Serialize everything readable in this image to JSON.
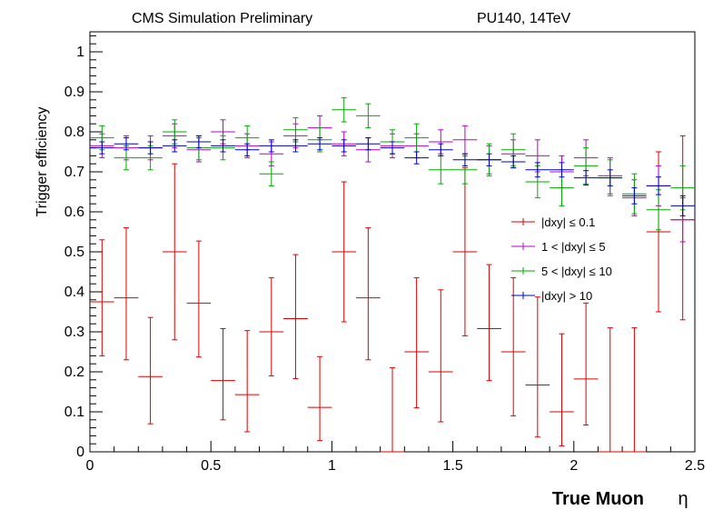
{
  "chart_data": {
    "type": "scatter",
    "style": "error-bars",
    "header_left": "CMS Simulation Preliminary",
    "header_right": "PU140, 14TeV",
    "xlabel": "True Muon",
    "xlabel_symbol": "η",
    "ylabel": "Trigger efficiency",
    "xlim": [
      0,
      2.5
    ],
    "ylim": [
      0,
      1.05
    ],
    "x_ticks": [
      0,
      0.5,
      1,
      1.5,
      2,
      2.5
    ],
    "x_tick_labels": [
      "0",
      "0.5",
      "1",
      "1.5",
      "2",
      "2.5"
    ],
    "y_ticks": [
      0,
      0.1,
      0.2,
      0.3,
      0.4,
      0.5,
      0.6,
      0.7,
      0.8,
      0.9,
      1
    ],
    "y_tick_labels": [
      "0",
      "0.1",
      "0.2",
      "0.3",
      "0.4",
      "0.5",
      "0.6",
      "0.7",
      "0.8",
      "0.9",
      "1"
    ],
    "grid": false,
    "legend_position": "center-right",
    "x": [
      0.05,
      0.15,
      0.25,
      0.35,
      0.45,
      0.55,
      0.65,
      0.75,
      0.85,
      0.95,
      1.05,
      1.15,
      1.25,
      1.35,
      1.45,
      1.55,
      1.65,
      1.75,
      1.85,
      1.95,
      2.05,
      2.15,
      2.25,
      2.35,
      2.45
    ],
    "bin_half_width": 0.05,
    "series": [
      {
        "name": "|dxy| ≤ 0.1",
        "color": "#dd0000",
        "values": [
          0.375,
          0.385,
          0.188,
          0.5,
          0.372,
          0.178,
          0.143,
          0.3,
          0.333,
          0.111,
          0.5,
          0.385,
          0.0,
          0.25,
          0.2,
          0.5,
          0.308,
          0.25,
          0.167,
          0.1,
          0.182,
          0.0,
          0.0,
          0.55,
          0.58
        ],
        "err_low": [
          0.135,
          0.155,
          0.118,
          0.22,
          0.135,
          0.098,
          0.093,
          0.11,
          0.15,
          0.083,
          0.175,
          0.155,
          0.0,
          0.14,
          0.125,
          0.21,
          0.13,
          0.16,
          0.13,
          0.085,
          0.115,
          0.0,
          0.0,
          0.2,
          0.25
        ],
        "err_high": [
          0.155,
          0.175,
          0.148,
          0.22,
          0.155,
          0.13,
          0.16,
          0.135,
          0.16,
          0.127,
          0.175,
          0.175,
          0.21,
          0.185,
          0.205,
          0.21,
          0.16,
          0.185,
          0.22,
          0.195,
          0.19,
          0.31,
          0.31,
          0.2,
          0.21
        ]
      },
      {
        "name": "1 < |dxy| ≤ 5",
        "color": "#bb00cc",
        "values": [
          0.765,
          0.76,
          0.76,
          0.79,
          0.755,
          0.8,
          0.765,
          0.745,
          0.79,
          0.81,
          0.77,
          0.755,
          0.765,
          0.765,
          0.775,
          0.78,
          0.73,
          0.745,
          0.74,
          0.7,
          0.735,
          0.69,
          0.635,
          0.665,
          0.58
        ],
        "err_low": [
          0.03,
          0.03,
          0.03,
          0.03,
          0.03,
          0.03,
          0.03,
          0.03,
          0.03,
          0.03,
          0.03,
          0.03,
          0.03,
          0.03,
          0.03,
          0.035,
          0.035,
          0.035,
          0.04,
          0.04,
          0.045,
          0.045,
          0.045,
          0.05,
          0.055
        ],
        "err_high": [
          0.03,
          0.03,
          0.03,
          0.03,
          0.03,
          0.03,
          0.03,
          0.03,
          0.03,
          0.03,
          0.03,
          0.03,
          0.03,
          0.03,
          0.03,
          0.035,
          0.035,
          0.035,
          0.04,
          0.04,
          0.045,
          0.045,
          0.045,
          0.05,
          0.055
        ]
      },
      {
        "name": "5 < |dxy| ≤ 10",
        "color": "#00aa00",
        "values": [
          0.785,
          0.735,
          0.735,
          0.8,
          0.76,
          0.76,
          0.785,
          0.695,
          0.805,
          0.78,
          0.855,
          0.84,
          0.775,
          0.785,
          0.705,
          0.705,
          0.73,
          0.755,
          0.675,
          0.66,
          0.715,
          0.685,
          0.645,
          0.605,
          0.66
        ],
        "err_low": [
          0.03,
          0.03,
          0.03,
          0.03,
          0.03,
          0.03,
          0.03,
          0.03,
          0.03,
          0.03,
          0.03,
          0.03,
          0.03,
          0.035,
          0.035,
          0.035,
          0.04,
          0.04,
          0.04,
          0.045,
          0.045,
          0.045,
          0.05,
          0.05,
          0.055
        ],
        "err_high": [
          0.03,
          0.03,
          0.03,
          0.03,
          0.03,
          0.03,
          0.03,
          0.03,
          0.03,
          0.03,
          0.03,
          0.03,
          0.03,
          0.035,
          0.035,
          0.035,
          0.04,
          0.04,
          0.04,
          0.045,
          0.045,
          0.045,
          0.05,
          0.05,
          0.055
        ]
      },
      {
        "name": "|dxy| > 10",
        "color": "#0000cc",
        "values": [
          0.76,
          0.77,
          0.76,
          0.765,
          0.775,
          0.765,
          0.755,
          0.765,
          0.765,
          0.77,
          0.765,
          0.77,
          0.76,
          0.735,
          0.755,
          0.73,
          0.73,
          0.725,
          0.705,
          0.705,
          0.685,
          0.685,
          0.64,
          0.665,
          0.615
        ],
        "err_low": [
          0.015,
          0.015,
          0.015,
          0.015,
          0.015,
          0.015,
          0.015,
          0.015,
          0.015,
          0.015,
          0.015,
          0.015,
          0.015,
          0.015,
          0.015,
          0.015,
          0.015,
          0.015,
          0.018,
          0.018,
          0.018,
          0.02,
          0.02,
          0.022,
          0.025
        ],
        "err_high": [
          0.015,
          0.015,
          0.015,
          0.015,
          0.015,
          0.015,
          0.015,
          0.015,
          0.015,
          0.015,
          0.015,
          0.015,
          0.015,
          0.015,
          0.015,
          0.015,
          0.015,
          0.015,
          0.018,
          0.018,
          0.018,
          0.02,
          0.02,
          0.022,
          0.025
        ]
      }
    ]
  }
}
